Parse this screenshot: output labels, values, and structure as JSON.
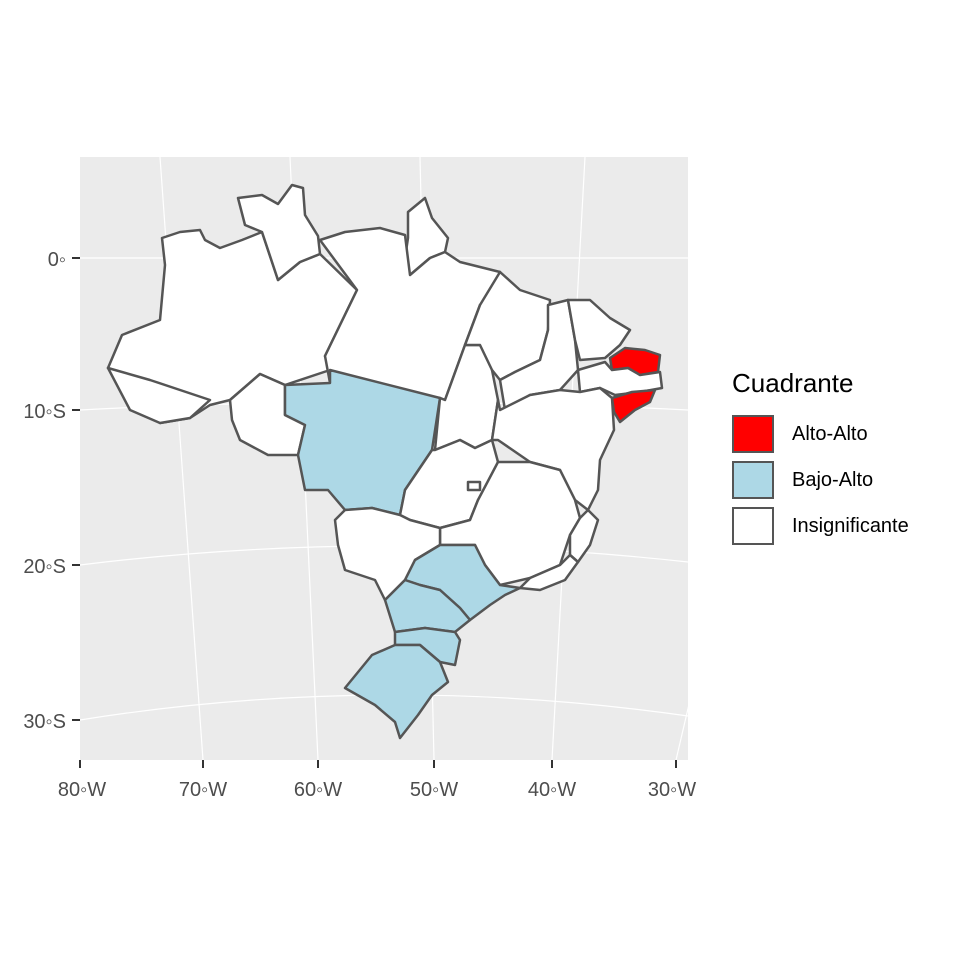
{
  "x_axis": {
    "ticks": [
      "80◦W",
      "70◦W",
      "60◦W",
      "50◦W",
      "40◦W",
      "30◦W"
    ]
  },
  "y_axis": {
    "ticks": [
      "0◦",
      "10◦S",
      "20◦S",
      "30◦S"
    ]
  },
  "legend": {
    "title": "Cuadrante",
    "items": [
      {
        "label": "Alto-Alto",
        "color": "#ff0000"
      },
      {
        "label": "Bajo-Alto",
        "color": "#add8e6"
      },
      {
        "label": "Insignificante",
        "color": "#ffffff"
      }
    ]
  },
  "colors": {
    "panel_background": "#ebebeb",
    "gridline": "#ffffff",
    "border": "#555555",
    "alto_alto": "#ff0000",
    "bajo_alto": "#add8e6",
    "insignificante": "#ffffff"
  },
  "regions": {
    "bajo_alto": [
      "Mato Grosso",
      "São Paulo",
      "Paraná",
      "Santa Catarina",
      "Rio Grande do Sul"
    ],
    "alto_alto": [
      "Paraíba / Rio Grande do Norte area",
      "Alagoas / Pernambuco area"
    ]
  }
}
